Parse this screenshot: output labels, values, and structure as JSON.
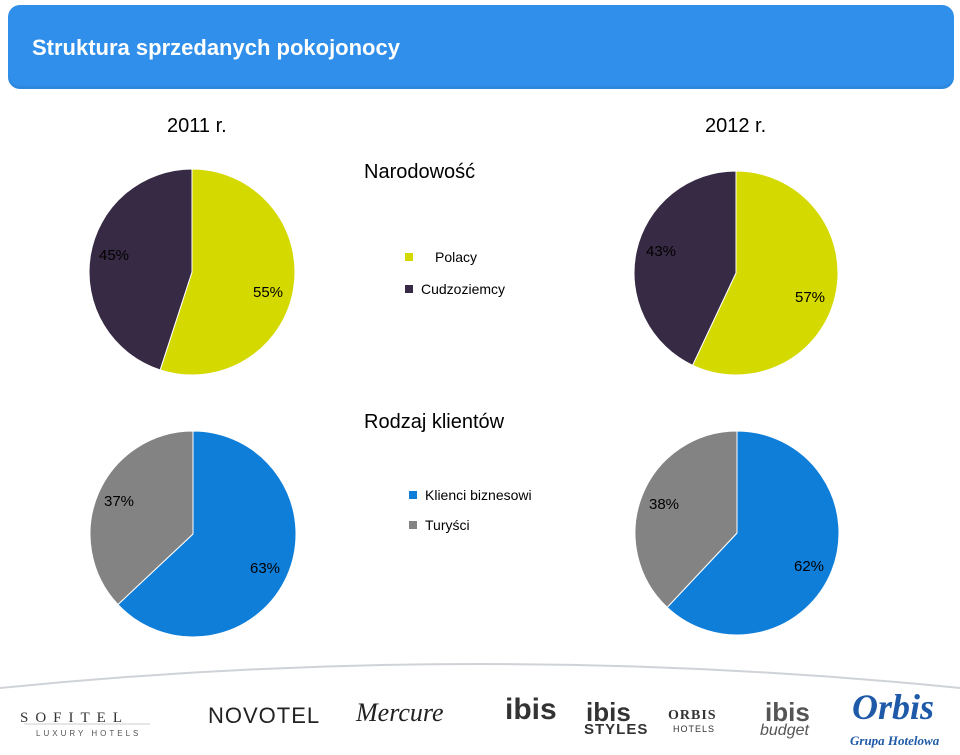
{
  "header": {
    "title": "Struktura sprzedanych pokojonocy"
  },
  "years": [
    "2011 r.",
    "2012 r."
  ],
  "colors": {
    "header_bg": "#2f8fea",
    "polacy": "#d4d900",
    "cudzoziemcy": "#372a44",
    "biznes": "#0f7ed9",
    "turysci": "#838383"
  },
  "chart_data": [
    {
      "type": "pie",
      "title": "Narodowość",
      "year": "2011 r.",
      "legend": [
        "Polacy",
        "Cudzoziemcy"
      ],
      "values": [
        55,
        45
      ],
      "labels": [
        "55%",
        "45%"
      ]
    },
    {
      "type": "pie",
      "title": "Narodowość",
      "year": "2012 r.",
      "legend": [
        "Polacy",
        "Cudzoziemcy"
      ],
      "values": [
        57,
        43
      ],
      "labels": [
        "57%",
        "43%"
      ]
    },
    {
      "type": "pie",
      "title": "Rodzaj klientów",
      "year": "2011 r.",
      "legend": [
        "Klienci biznesowi",
        "Turyści"
      ],
      "values": [
        63,
        37
      ],
      "labels": [
        "63%",
        "37%"
      ]
    },
    {
      "type": "pie",
      "title": "Rodzaj klientów",
      "year": "2012 r.",
      "legend": [
        "Klienci biznesowi",
        "Turyści"
      ],
      "values": [
        62,
        38
      ],
      "labels": [
        "62%",
        "38%"
      ]
    }
  ],
  "sections": {
    "nationality": {
      "title": "Narodowość",
      "legend": [
        "Polacy",
        "Cudzoziemcy"
      ]
    },
    "client_type": {
      "title": "Rodzaj klientów",
      "legend": [
        "Klienci biznesowi",
        "Turyści"
      ]
    }
  },
  "footer_logos": {
    "sofitel": "SOFITEL",
    "sofitel_sub": "LUXURY HOTELS",
    "novotel": "NOVOTEL",
    "mercure": "Mercure",
    "ibis": "ibis",
    "ibis_styles": "ibis",
    "ibis_styles_sub": "STYLES",
    "orbis_hotels": "ORBIS",
    "orbis_hotels_sub": "HOTELS",
    "ibis_budget": "ibis",
    "ibis_budget_sub": "budget",
    "orbis": "Orbis",
    "orbis_sub": "Grupa Hotelowa"
  }
}
